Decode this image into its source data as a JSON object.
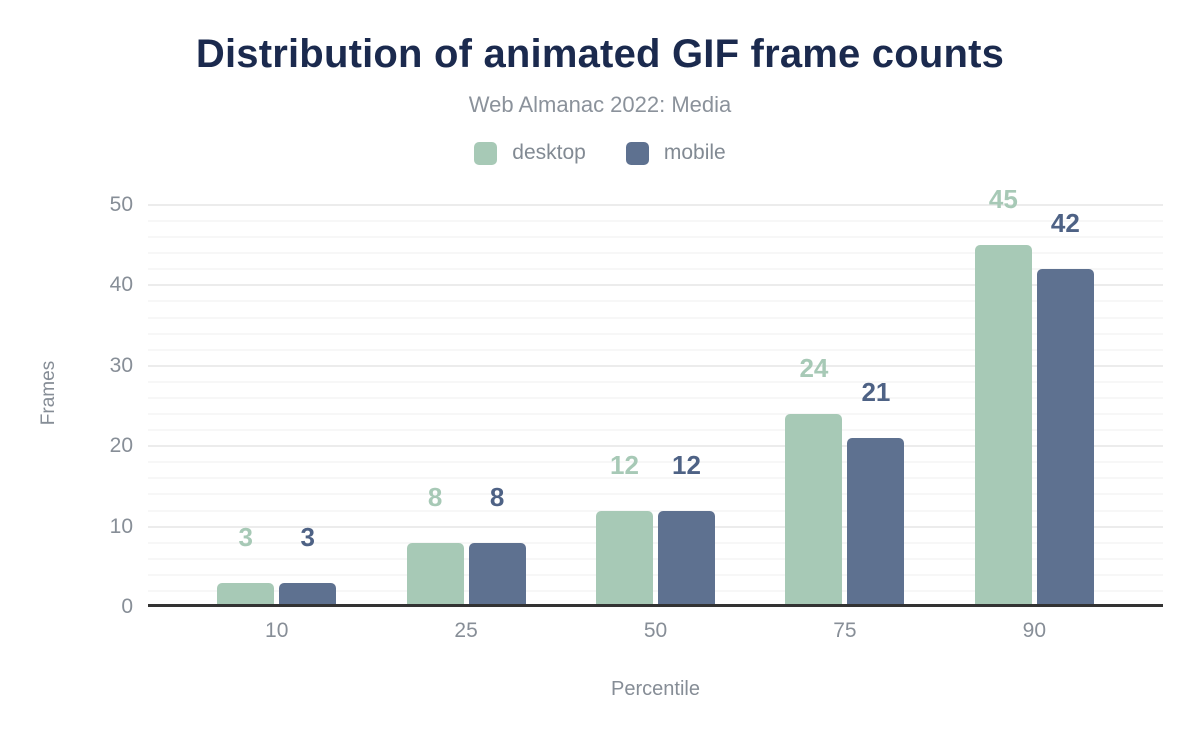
{
  "title": "Distribution of animated GIF frame counts",
  "subtitle": "Web Almanac 2022: Media",
  "chart_data": {
    "type": "bar",
    "title": "Distribution of animated GIF frame counts",
    "subtitle": "Web Almanac 2022: Media",
    "xlabel": "Percentile",
    "ylabel": "Frames",
    "categories": [
      "10",
      "25",
      "50",
      "75",
      "90"
    ],
    "series": [
      {
        "name": "desktop",
        "color": "#a7c9b6",
        "label_color": "#a7c9b6",
        "values": [
          3,
          8,
          12,
          24,
          45
        ]
      },
      {
        "name": "mobile",
        "color": "#5e7190",
        "label_color": "#4e6285",
        "values": [
          3,
          8,
          12,
          21,
          42
        ]
      }
    ],
    "ylim": [
      0,
      50
    ],
    "yticks": [
      0,
      10,
      20,
      30,
      40,
      50
    ],
    "grid": {
      "on": true,
      "minor_step": 2,
      "major_step": 10,
      "minor_color": "#f7f7f7",
      "major_color": "#ececec"
    },
    "legend_position": "top",
    "axis_line_color": "#333333",
    "tick_color": "#878e97",
    "title_color": "#1b2a4e",
    "subtitle_color": "#8b929b"
  }
}
